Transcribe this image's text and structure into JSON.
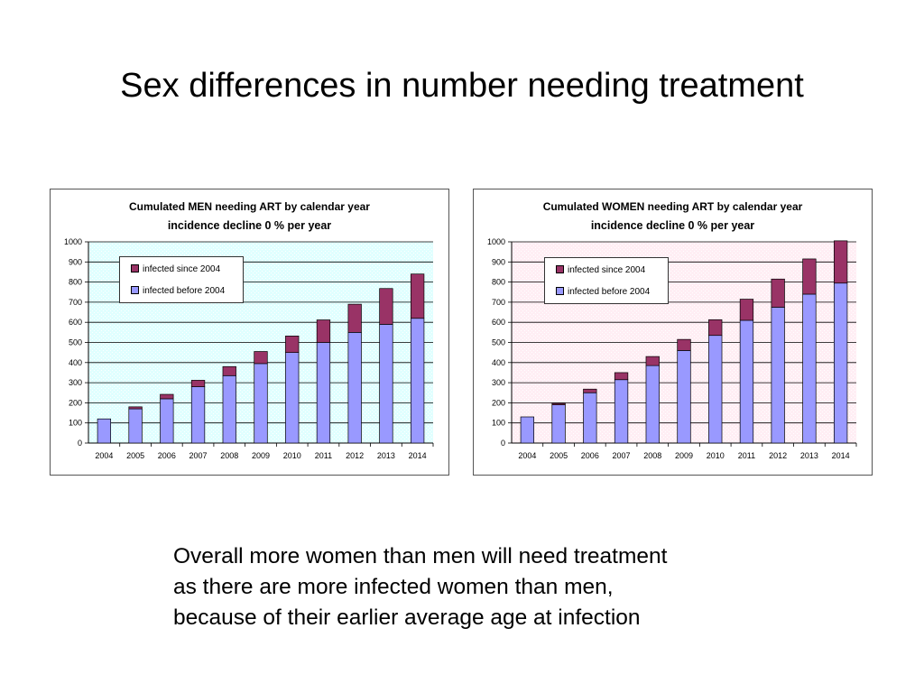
{
  "slide": {
    "title": "Sex differences in number needing treatment",
    "caption_lines": [
      "Overall more women than men will need treatment",
      "as there are more infected women than men,",
      "because of their earlier average age at infection"
    ]
  },
  "colors": {
    "before_2004": "#9999FF",
    "since_2004": "#993366",
    "men_plot_bg": "#E0FFFF",
    "women_plot_bg": "#FFEEF4"
  },
  "chart_data": [
    {
      "id": "men",
      "type": "bar",
      "stacked": true,
      "title": "Cumulated MEN needing ART by calendar year",
      "subtitle": "incidence decline 0 % per year",
      "categories": [
        "2004",
        "2005",
        "2006",
        "2007",
        "2008",
        "2009",
        "2010",
        "2011",
        "2012",
        "2013",
        "2014"
      ],
      "series": [
        {
          "name": "infected before 2004",
          "values": [
            120,
            170,
            220,
            280,
            335,
            395,
            450,
            500,
            550,
            590,
            620
          ]
        },
        {
          "name": "infected since 2004",
          "values": [
            0,
            10,
            22,
            32,
            45,
            60,
            82,
            112,
            140,
            178,
            220
          ]
        }
      ],
      "ylim": [
        0,
        1000
      ],
      "yticks": [
        0,
        100,
        200,
        300,
        400,
        500,
        600,
        700,
        800,
        900,
        1000
      ],
      "grid": true,
      "legend": "top-left",
      "legend_entries": [
        "infected since 2004",
        "infected before 2004"
      ]
    },
    {
      "id": "women",
      "type": "bar",
      "stacked": true,
      "title": "Cumulated WOMEN needing ART by calendar year",
      "subtitle": "incidence decline 0 % per year",
      "categories": [
        "2004",
        "2005",
        "2006",
        "2007",
        "2008",
        "2009",
        "2010",
        "2011",
        "2012",
        "2013",
        "2014"
      ],
      "series": [
        {
          "name": "infected before 2004",
          "values": [
            130,
            190,
            250,
            315,
            385,
            460,
            535,
            610,
            675,
            740,
            795
          ]
        },
        {
          "name": "infected since 2004",
          "values": [
            0,
            7,
            18,
            35,
            45,
            55,
            78,
            105,
            140,
            175,
            210
          ]
        }
      ],
      "ylim": [
        0,
        1000
      ],
      "yticks": [
        0,
        100,
        200,
        300,
        400,
        500,
        600,
        700,
        800,
        900,
        1000
      ],
      "grid": true,
      "legend": "top-left",
      "legend_entries": [
        "infected since 2004",
        "infected before 2004"
      ]
    }
  ]
}
